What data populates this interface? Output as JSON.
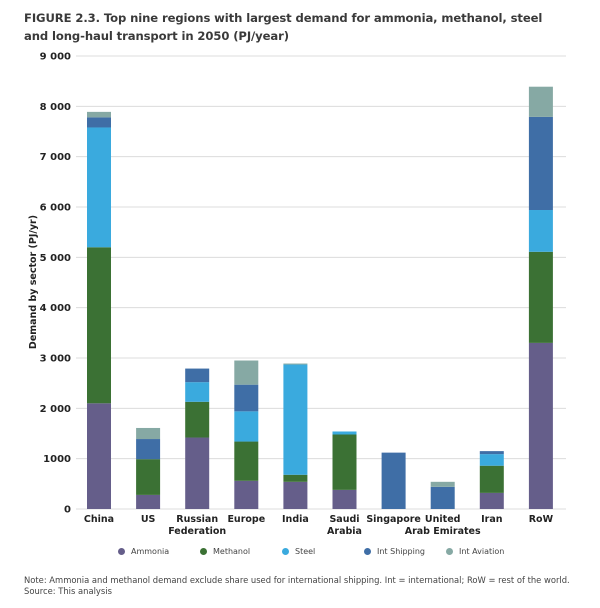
{
  "chart_data": {
    "type": "bar",
    "stacked": true,
    "title": "FIGURE 2.3. Top nine regions with largest demand for ammonia, methanol, steel and long-haul transport in 2050 (PJ/year)",
    "xlabel": "",
    "ylabel": "Demand by sector (PJ/yr)",
    "ylim": [
      0,
      9000
    ],
    "yticks": [
      0,
      1000,
      2000,
      3000,
      4000,
      5000,
      6000,
      7000,
      8000,
      9000
    ],
    "ytick_labels": [
      "0",
      "1000",
      "2 000",
      "3 000",
      "4 000",
      "5 000",
      "6 000",
      "7 000",
      "8 000",
      "9 000"
    ],
    "grid": true,
    "legend_position": "bottom",
    "categories": [
      [
        "China"
      ],
      [
        "US"
      ],
      [
        "Russian",
        "Federation"
      ],
      [
        "Europe"
      ],
      [
        "India"
      ],
      [
        "Saudi",
        "Arabia"
      ],
      [
        "Singapore"
      ],
      [
        "United",
        "Arab Emirates"
      ],
      [
        "Iran"
      ],
      [
        "RoW"
      ]
    ],
    "series": [
      {
        "name": "Ammonia",
        "color": "#655e8a",
        "values": [
          2100,
          280,
          1420,
          560,
          540,
          380,
          0,
          0,
          320,
          3300
        ]
      },
      {
        "name": "Methanol",
        "color": "#3b7134",
        "values": [
          3100,
          710,
          710,
          780,
          140,
          1100,
          0,
          0,
          540,
          1810
        ]
      },
      {
        "name": "Steel",
        "color": "#3aaade",
        "values": [
          2380,
          0,
          390,
          600,
          2190,
          60,
          0,
          0,
          230,
          830
        ]
      },
      {
        "name": "Int Shipping",
        "color": "#3f6ea6",
        "values": [
          200,
          400,
          270,
          530,
          0,
          0,
          1120,
          440,
          60,
          1850
        ]
      },
      {
        "name": "Int Aviation",
        "color": "#86a9a4",
        "values": [
          110,
          220,
          0,
          480,
          20,
          0,
          0,
          100,
          0,
          600
        ]
      }
    ]
  },
  "note": "Note: Ammonia and methanol demand exclude share used for international shipping. Int = international; RoW = rest of the world.",
  "source": "Source: This analysis"
}
